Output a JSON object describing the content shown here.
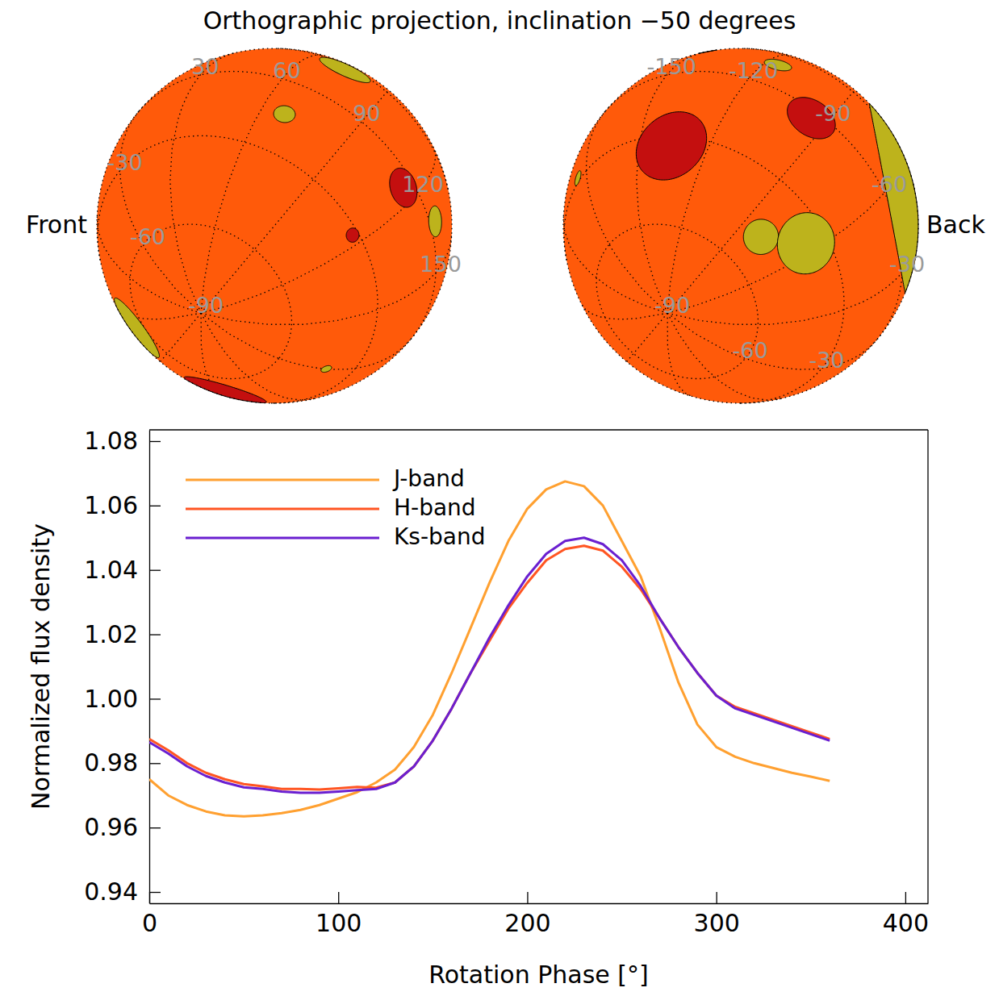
{
  "title": "Orthographic projection, inclination −50 degrees",
  "inclination": -50,
  "chart_data": [
    {
      "type": "orthographic",
      "label": "Front",
      "color": "#ff5a0a",
      "grid": true,
      "xlim": [
        -180,
        180
      ],
      "ylim": [
        -90,
        90
      ],
      "xticks": [
        30,
        60,
        90,
        120,
        150
      ],
      "yticks": [
        -30,
        -60,
        -90
      ],
      "spots": [
        {
          "lon": 115,
          "lat": -5,
          "radius": 6.5,
          "color": "#c40f0f"
        },
        {
          "lon": 116,
          "lat": -32,
          "radius": 2.3,
          "color": "#c40f0f"
        },
        {
          "lon": 133,
          "lat": 4,
          "radius": 5,
          "color": "#bdb31c"
        },
        {
          "lon": 68,
          "lat": -15,
          "radius": 3.5,
          "color": "#bdb31c"
        },
        {
          "lon": 73,
          "lat": 26,
          "radius": 9,
          "color": "#bdb31c"
        },
        {
          "lon": -180,
          "lat": -42,
          "radius": 1.8,
          "color": "#bdb31c"
        },
        {
          "lon": -122,
          "lat": -42,
          "radius": 14,
          "color": "#c40f0f"
        },
        {
          "lon": -70,
          "lat": -48,
          "radius": 12,
          "color": "#bdb31c"
        }
      ]
    },
    {
      "type": "orthographic",
      "label": "Back",
      "color": "#ff5a0a",
      "grid": true,
      "xlim": [
        -180,
        180
      ],
      "ylim": [
        -90,
        90
      ],
      "xticks": [
        -150,
        -120,
        -90,
        -60,
        -30
      ],
      "yticks": [
        -60,
        -30,
        -90
      ],
      "spots": [
        {
          "lon": -136,
          "lat": -33,
          "radius": 12.5,
          "color": "#c40f0f"
        },
        {
          "lon": -95,
          "lat": -3,
          "radius": 8.5,
          "color": "#c40f0f"
        },
        {
          "lon": -79,
          "lat": -48,
          "radius": 5.7,
          "color": "#bdb31c"
        },
        {
          "lon": -64,
          "lat": -37,
          "radius": 10,
          "color": "#bdb31c"
        },
        {
          "lon": -43,
          "lat": 30,
          "radius": 33,
          "color": "#bdb31c"
        },
        {
          "lon": 173,
          "lat": -28,
          "radius": 2.5,
          "color": "#bdb31c"
        },
        {
          "lon": -148,
          "lat": 24,
          "radius": 3,
          "color": "#000000"
        },
        {
          "lon": -116,
          "lat": 15,
          "radius": 4.5,
          "color": "#bdb31c"
        }
      ]
    },
    {
      "type": "line",
      "xlabel": "Rotation Phase [°]",
      "ylabel": "Normalized flux density",
      "x": [
        0,
        10,
        20,
        30,
        40,
        50,
        60,
        70,
        80,
        90,
        100,
        110,
        120,
        130,
        140,
        150,
        160,
        170,
        180,
        190,
        200,
        210,
        220,
        230,
        240,
        250,
        260,
        270,
        280,
        290,
        300,
        310,
        320,
        330,
        340,
        350,
        360
      ],
      "series": [
        {
          "name": "J-band",
          "color": "#ffa030",
          "values": [
            0.975,
            0.97,
            0.967,
            0.965,
            0.9638,
            0.9635,
            0.9638,
            0.9645,
            0.9655,
            0.967,
            0.969,
            0.971,
            0.974,
            0.978,
            0.985,
            0.995,
            1.008,
            1.022,
            1.036,
            1.049,
            1.059,
            1.065,
            1.0675,
            1.066,
            1.06,
            1.049,
            1.038,
            1.022,
            1.005,
            0.992,
            0.985,
            0.982,
            0.98,
            0.9785,
            0.977,
            0.9758,
            0.9745
          ]
        },
        {
          "name": "H-band",
          "color": "#ff5522",
          "values": [
            0.9875,
            0.984,
            0.98,
            0.977,
            0.975,
            0.9735,
            0.9728,
            0.972,
            0.972,
            0.9718,
            0.9722,
            0.9726,
            0.9724,
            0.974,
            0.979,
            0.987,
            0.997,
            1.008,
            1.018,
            1.028,
            1.036,
            1.043,
            1.0465,
            1.0475,
            1.046,
            1.041,
            1.034,
            1.025,
            1.016,
            1.008,
            1.001,
            0.9975,
            0.9955,
            0.9935,
            0.9915,
            0.9895,
            0.9875
          ]
        },
        {
          "name": "Ks-band",
          "color": "#6a1fd0",
          "values": [
            0.9865,
            0.983,
            0.979,
            0.976,
            0.974,
            0.9725,
            0.972,
            0.9712,
            0.9708,
            0.9708,
            0.9712,
            0.9716,
            0.972,
            0.974,
            0.979,
            0.987,
            0.997,
            1.008,
            1.019,
            1.029,
            1.038,
            1.045,
            1.049,
            1.05,
            1.048,
            1.043,
            1.035,
            1.025,
            1.016,
            1.008,
            1.001,
            0.997,
            0.995,
            0.993,
            0.991,
            0.989,
            0.987
          ]
        }
      ],
      "xlim": [
        0,
        412
      ],
      "ylim": [
        0.9365,
        1.0835
      ],
      "xticks": [
        0,
        100,
        200,
        300,
        400
      ],
      "yticks": [
        0.94,
        0.96,
        0.98,
        {
          "value": 1,
          "label": "1.00"
        },
        1.02,
        1.04,
        1.06,
        1.08
      ],
      "legend": "upper left",
      "grid": false
    }
  ]
}
